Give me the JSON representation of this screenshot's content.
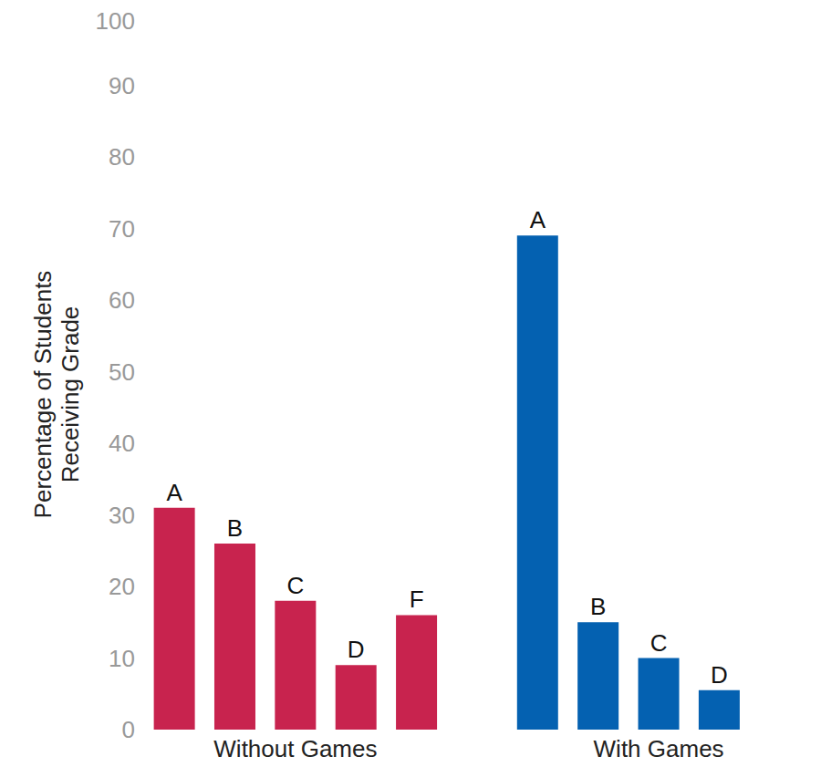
{
  "chart_data": {
    "type": "bar",
    "y_label": "Percentage of Students Receiving Grade",
    "categories": [
      "A",
      "B",
      "C",
      "D",
      "F"
    ],
    "series": [
      {
        "name": "Without Games",
        "color": "#c8234e",
        "values": [
          31,
          26,
          18,
          9,
          16
        ]
      },
      {
        "name": "With Games",
        "color": "#0461b1",
        "values": [
          69,
          15,
          10,
          5.5,
          0
        ]
      }
    ],
    "ylim": [
      0,
      100
    ],
    "yticks": [
      0,
      10,
      20,
      30,
      40,
      50,
      60,
      70,
      80,
      90,
      100
    ],
    "grid": false
  }
}
